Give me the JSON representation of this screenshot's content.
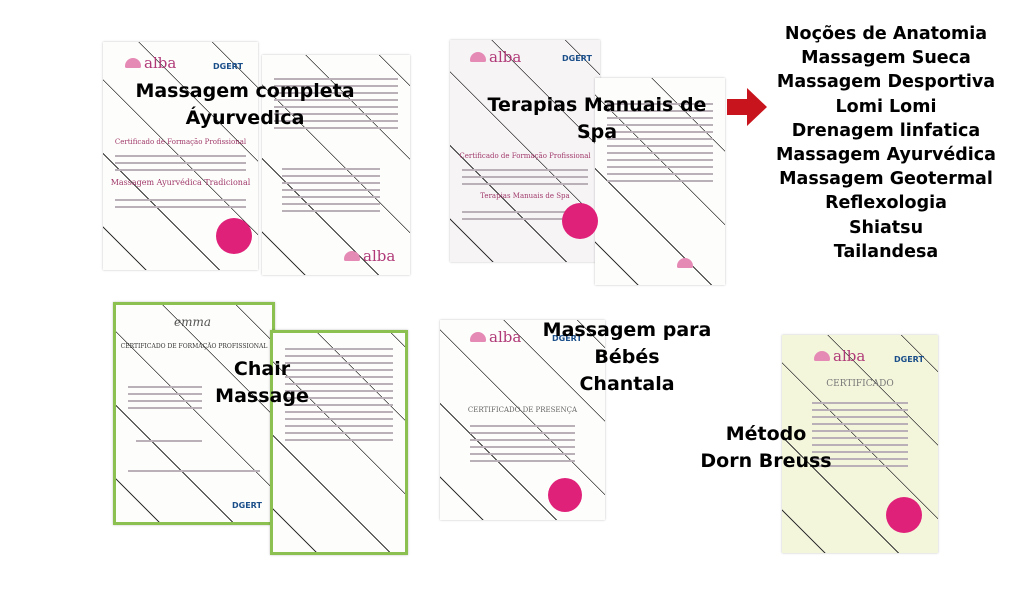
{
  "certificates": {
    "ayurvedica": {
      "label_lines": [
        "Massagem completa",
        "Áyurvedica"
      ],
      "logo": "alba",
      "badge": "DGERT",
      "title": "Certificado de Formação Profissional",
      "course": "Massagem Ayurvédica Tradicional"
    },
    "spa": {
      "label_lines": [
        "Terapias Manuais de",
        "Spa"
      ],
      "logo": "alba",
      "badge": "DGERT",
      "title": "Certificado de Formação Profissional",
      "course": "Terapias Manuais de Spa"
    },
    "chair": {
      "label_lines": [
        "Chair",
        "Massage"
      ],
      "logo": "emma",
      "badge": "DGERT",
      "title": "CERTIFICADO DE FORMAÇÃO PROFISSIONAL"
    },
    "bebes": {
      "label_lines": [
        "Massagem para",
        "Bébés",
        "Chantala"
      ],
      "logo": "alba",
      "badge": "DGERT",
      "title": "CERTIFICADO DE PRESENÇA"
    },
    "dorn": {
      "label_lines": [
        "Método",
        "Dorn Breuss"
      ],
      "logo": "alba",
      "badge": "DGERT",
      "title": "CERTIFICADO"
    }
  },
  "arrow_icon": "arrow-right-icon",
  "arrow_color": "#c8141c",
  "seal_color": "#e0217a",
  "techniques": [
    "Noções de Anatomia",
    "Massagem Sueca",
    "Massagem Desportiva",
    "Lomi Lomi",
    "Drenagem linfatica",
    "Massagem Ayurvédica",
    "Massagem Geotermal",
    "Reflexologia",
    "Shiatsu",
    "Tailandesa"
  ]
}
